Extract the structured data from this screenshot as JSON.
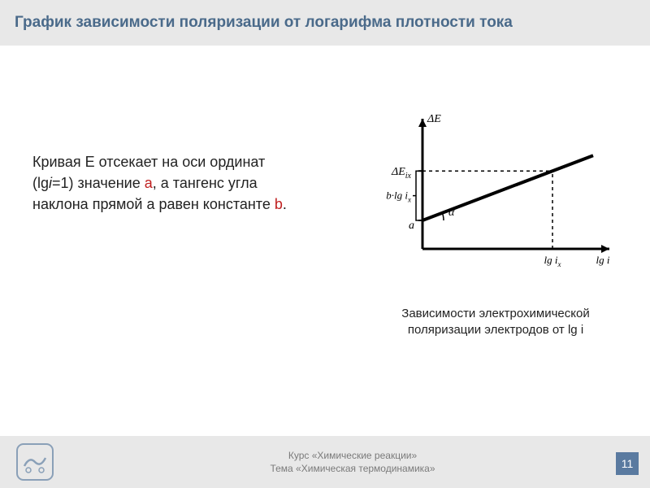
{
  "header": {
    "title": "График зависимости поляризации от логарифма плотности тока",
    "title_color": "#4a6a8a",
    "bg_color": "#e8e8e8",
    "title_fontsize": 19
  },
  "body": {
    "text_prefix": "Кривая Е отсекает на оси ординат (lg",
    "text_italic1": "i",
    "text_mid1": "=1) значение ",
    "highlight_a": "а",
    "text_mid2": ", а тангенс угла наклона прямой а равен константе ",
    "highlight_b": "b",
    "text_suffix": ".",
    "fontsize": 18,
    "highlight_color": "#c02020"
  },
  "diagram": {
    "type": "line",
    "stroke_color": "#000000",
    "axis_width": 3,
    "data_line_width": 4,
    "dashed_pattern": "4,4",
    "y_axis_label": "ΔE",
    "y_tick_labels": [
      "ΔE_ix",
      "b·lg i_x",
      "a"
    ],
    "x_tick_labels": [
      "lg i_x",
      "lg i"
    ],
    "angle_label": "α",
    "intercept": 35,
    "slope": 0.38,
    "xlim": [
      0,
      230
    ],
    "ylim": [
      0,
      160
    ],
    "point_x": 160
  },
  "caption": {
    "line1": "Зависимости электрохимической",
    "line2": "поляризации электродов от lg ",
    "line2_italic": "i",
    "fontsize": 15
  },
  "footer": {
    "bg_color": "#e8e8e8",
    "text_line1": "Курс «Химические реакции»",
    "text_line2": "Тема «Химическая термодинамика»",
    "text_color": "#7a7a7a",
    "page_number": "11",
    "page_bg": "#5a7aa0",
    "logo_stroke": "#8aa0b8"
  }
}
